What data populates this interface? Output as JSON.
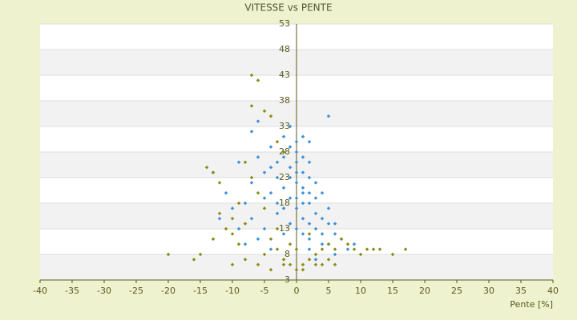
{
  "chart_data": {
    "type": "scatter",
    "title": "VITESSE vs PENTE",
    "x_label": "Pente [%]",
    "xlim": [
      -40,
      40
    ],
    "xticks": [
      -40,
      -35,
      -30,
      -25,
      -20,
      -15,
      -10,
      -5,
      0,
      5,
      10,
      15,
      20,
      25,
      30,
      35,
      40
    ],
    "ylim": [
      3,
      53
    ],
    "yticks": [
      3,
      8,
      13,
      18,
      23,
      28,
      33,
      38,
      43,
      48,
      53
    ],
    "grid": true,
    "series": [
      {
        "color": "#3a8fd8",
        "x": [
          -1,
          0,
          1,
          2,
          -2,
          0,
          1,
          -1,
          3,
          2,
          4,
          5,
          -3,
          -4,
          -5,
          -6,
          -7,
          -8,
          -10,
          -12,
          -11,
          -13,
          -9,
          -7,
          -6,
          -4,
          -2,
          0,
          1,
          2,
          3,
          4,
          5,
          6,
          7,
          8,
          6,
          4,
          3,
          1,
          0,
          -1,
          -2,
          -3,
          -5,
          -6,
          -8,
          -4,
          2,
          3,
          5,
          1,
          -1,
          0,
          1,
          2,
          -1,
          -3,
          -2,
          0,
          1,
          2,
          3,
          4,
          5,
          6,
          9,
          10,
          -7,
          -9,
          -5,
          -4,
          -3,
          0,
          0,
          1,
          2,
          -2,
          -1,
          2
        ],
        "values": [
          25,
          22,
          20,
          18,
          21,
          28,
          24,
          19,
          16,
          14,
          12,
          10,
          23,
          20,
          24,
          27,
          22,
          18,
          17,
          15,
          20,
          24,
          26,
          32,
          34,
          29,
          31,
          30,
          27,
          26,
          22,
          20,
          17,
          14,
          11,
          9,
          8,
          10,
          13,
          15,
          17,
          14,
          12,
          16,
          13,
          11,
          10,
          9,
          9,
          7,
          35,
          31,
          33,
          26,
          21,
          23,
          23,
          26,
          27,
          19,
          18,
          20,
          19,
          15,
          14,
          12,
          10,
          8,
          15,
          13,
          19,
          25,
          18,
          24,
          13,
          12,
          11,
          17,
          29,
          30
        ]
      },
      {
        "color": "#8a8a10",
        "x": [
          -20,
          -16,
          -15,
          -14,
          -13,
          -12,
          -10,
          -11,
          -10,
          -9,
          -8,
          -7,
          -6,
          -7,
          -5,
          -4,
          -3,
          -2,
          -6,
          -5,
          -4,
          -3,
          -2,
          -1,
          0,
          1,
          2,
          3,
          4,
          5,
          6,
          7,
          8,
          9,
          10,
          11,
          12,
          13,
          15,
          17,
          -8,
          -6,
          -4,
          -2,
          1,
          3,
          5,
          6,
          -12,
          -13,
          -10,
          -9,
          -7,
          -8,
          -1,
          0,
          2,
          -3,
          -5,
          4
        ],
        "values": [
          8,
          7,
          8,
          25,
          24,
          22,
          12,
          13,
          15,
          10,
          14,
          43,
          42,
          37,
          36,
          35,
          30,
          28,
          20,
          17,
          11,
          9,
          7,
          6,
          5,
          6,
          7,
          8,
          9,
          10,
          9,
          11,
          10,
          9,
          8,
          9,
          9,
          9,
          8,
          9,
          7,
          6,
          5,
          6,
          5,
          6,
          7,
          6,
          16,
          11,
          6,
          18,
          23,
          26,
          10,
          9,
          12,
          13,
          8,
          6
        ]
      }
    ]
  }
}
